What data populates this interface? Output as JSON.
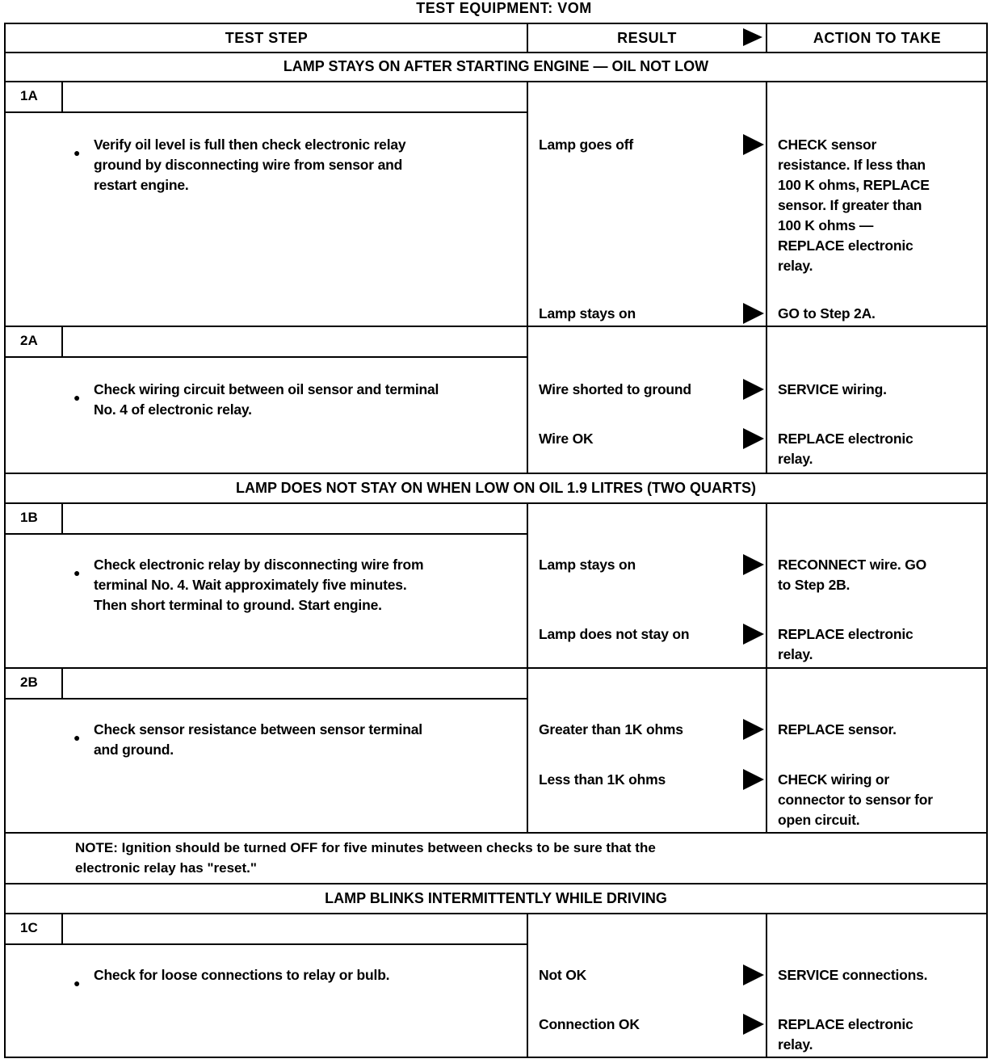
{
  "title": "TEST EQUIPMENT: VOM",
  "headers": {
    "test_step": "TEST STEP",
    "result": "RESULT",
    "action": "ACTION TO TAKE"
  },
  "sections": [
    "LAMP STAYS ON AFTER STARTING ENGINE — OIL NOT LOW",
    "LAMP DOES NOT STAY ON WHEN LOW ON OIL 1.9 LITRES (TWO QUARTS)",
    "LAMP BLINKS INTERMITTENTLY WHILE DRIVING"
  ],
  "steps": [
    {
      "id": "1A",
      "instruction": "Verify oil level is full then check electronic relay\nground by disconnecting wire from sensor and\nrestart engine.",
      "results": [
        {
          "result": "Lamp goes off",
          "action": "CHECK sensor\nresistance. If less than\n100 K ohms, REPLACE\nsensor. If greater than\n100 K ohms —\nREPLACE electronic\nrelay."
        },
        {
          "result": "Lamp stays on",
          "action": "GO to Step 2A."
        }
      ]
    },
    {
      "id": "2A",
      "instruction": "Check wiring circuit between oil sensor and terminal\nNo. 4 of electronic relay.",
      "results": [
        {
          "result": "Wire shorted to ground",
          "action": "SERVICE wiring."
        },
        {
          "result": "Wire OK",
          "action": "REPLACE electronic\nrelay."
        }
      ]
    },
    {
      "id": "1B",
      "instruction": "Check electronic relay by disconnecting wire from\nterminal No. 4. Wait approximately five minutes.\nThen short terminal to ground. Start engine.",
      "results": [
        {
          "result": "Lamp stays on",
          "action": "RECONNECT wire. GO\nto Step 2B."
        },
        {
          "result": "Lamp does not stay on",
          "action": "REPLACE electronic\nrelay."
        }
      ]
    },
    {
      "id": "2B",
      "instruction": "Check sensor resistance between sensor terminal\nand ground.",
      "results": [
        {
          "result": "Greater than 1K ohms",
          "action": "REPLACE sensor."
        },
        {
          "result": "Less than 1K ohms",
          "action": "CHECK wiring or\nconnector to sensor for\nopen circuit."
        }
      ]
    },
    {
      "id": "1C",
      "instruction": "Check for loose connections to relay or bulb.",
      "results": [
        {
          "result": "Not OK",
          "action": "SERVICE connections."
        },
        {
          "result": "Connection OK",
          "action": "REPLACE electronic\nrelay."
        }
      ]
    }
  ],
  "note": "NOTE: Ignition should be turned OFF for five minutes between checks to be sure that the\nelectronic relay has \"reset.\"",
  "icons": {
    "result_arrow": "right-triangle-arrow-icon"
  }
}
